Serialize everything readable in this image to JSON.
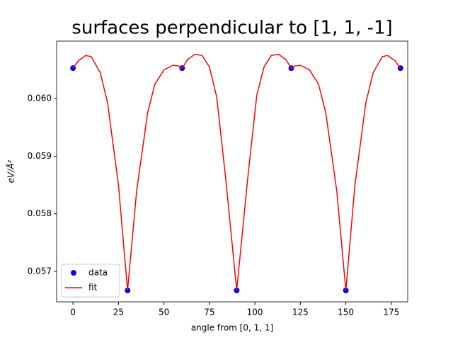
{
  "chart_data": {
    "type": "line",
    "title": "surfaces perpendicular to [1, 1, -1]",
    "xlabel": "angle from [0, 1, 1]",
    "ylabel": "eV/Å²",
    "xlim": [
      -9,
      184
    ],
    "xticks": [
      0,
      25,
      50,
      75,
      100,
      125,
      150,
      175
    ],
    "ylim": [
      0.05647,
      0.061
    ],
    "yticks": [
      0.057,
      0.058,
      0.059,
      {
        "value": 0.06,
        "label": "0.060"
      }
    ],
    "grid": false,
    "legend": "lower left",
    "series": [
      {
        "name": "data",
        "type": "scatter",
        "color": "#0000ff",
        "x": [
          0,
          30,
          60,
          90,
          120,
          150,
          180
        ],
        "values": [
          0.06053,
          0.05667,
          0.06053,
          0.05667,
          0.06053,
          0.05667,
          0.06053
        ]
      },
      {
        "name": "fit",
        "type": "line",
        "color": "#ff0000",
        "x": [
          0,
          3,
          7,
          10,
          15,
          19,
          25,
          30,
          35,
          41,
          45,
          50,
          55,
          58,
          60,
          63,
          67,
          71,
          75,
          79,
          84,
          90,
          96,
          101,
          105,
          109,
          113,
          117,
          120,
          122,
          125,
          130,
          135,
          139,
          145,
          150,
          155,
          161,
          165,
          170,
          173,
          177,
          180
        ],
        "values": [
          0.06053,
          0.06066,
          0.06075,
          0.06073,
          0.06045,
          0.05993,
          0.0585,
          0.05667,
          0.0584,
          0.05975,
          0.06025,
          0.0605,
          0.06058,
          0.06057,
          0.06053,
          0.06068,
          0.06077,
          0.06075,
          0.06055,
          0.06003,
          0.0586,
          0.05667,
          0.0586,
          0.06005,
          0.06055,
          0.06075,
          0.06077,
          0.06068,
          0.06053,
          0.06057,
          0.06058,
          0.0605,
          0.06025,
          0.05975,
          0.0584,
          0.05667,
          0.0585,
          0.05993,
          0.06045,
          0.06073,
          0.06075,
          0.06066,
          0.06053
        ]
      }
    ]
  }
}
